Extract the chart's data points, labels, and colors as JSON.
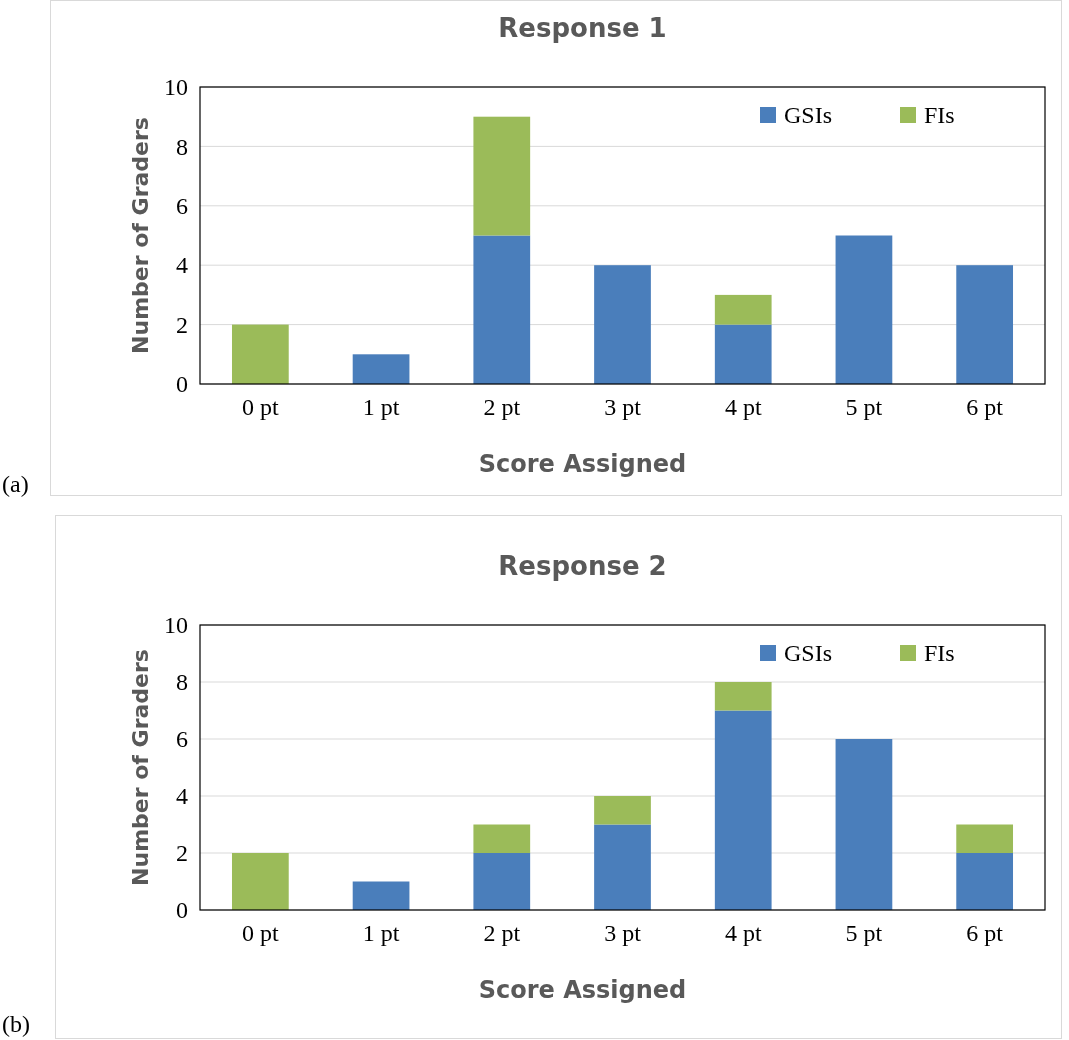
{
  "chart_data": [
    {
      "type": "bar",
      "title": "Response 1",
      "xlabel": "Score Assigned",
      "ylabel": "Number of Graders",
      "categories": [
        "0 pt",
        "1 pt",
        "2 pt",
        "3 pt",
        "4 pt",
        "5 pt",
        "6 pt"
      ],
      "stacked": true,
      "series": [
        {
          "name": "GSIs",
          "color": "#4a7ebb",
          "values": [
            0,
            1,
            5,
            4,
            2,
            5,
            4
          ]
        },
        {
          "name": "FIs",
          "color": "#9bbb59",
          "values": [
            2,
            0,
            4,
            0,
            1,
            0,
            0
          ]
        }
      ],
      "ylim": [
        0,
        10
      ],
      "yticks": [
        0,
        2,
        4,
        6,
        8,
        10
      ],
      "grid": "y",
      "legend": "top right",
      "annotations": [
        "(a)"
      ]
    },
    {
      "type": "bar",
      "title": "Response 2",
      "xlabel": "Score Assigned",
      "ylabel": "Number of Graders",
      "categories": [
        "0 pt",
        "1 pt",
        "2 pt",
        "3 pt",
        "4 pt",
        "5 pt",
        "6 pt"
      ],
      "stacked": true,
      "series": [
        {
          "name": "GSIs",
          "color": "#4a7ebb",
          "values": [
            0,
            1,
            2,
            3,
            7,
            6,
            2
          ]
        },
        {
          "name": "FIs",
          "color": "#9bbb59",
          "values": [
            2,
            0,
            1,
            1,
            1,
            0,
            1
          ]
        }
      ],
      "ylim": [
        0,
        10
      ],
      "yticks": [
        0,
        2,
        4,
        6,
        8,
        10
      ],
      "grid": "y",
      "legend": "top right",
      "annotations": [
        "(b)"
      ]
    }
  ]
}
